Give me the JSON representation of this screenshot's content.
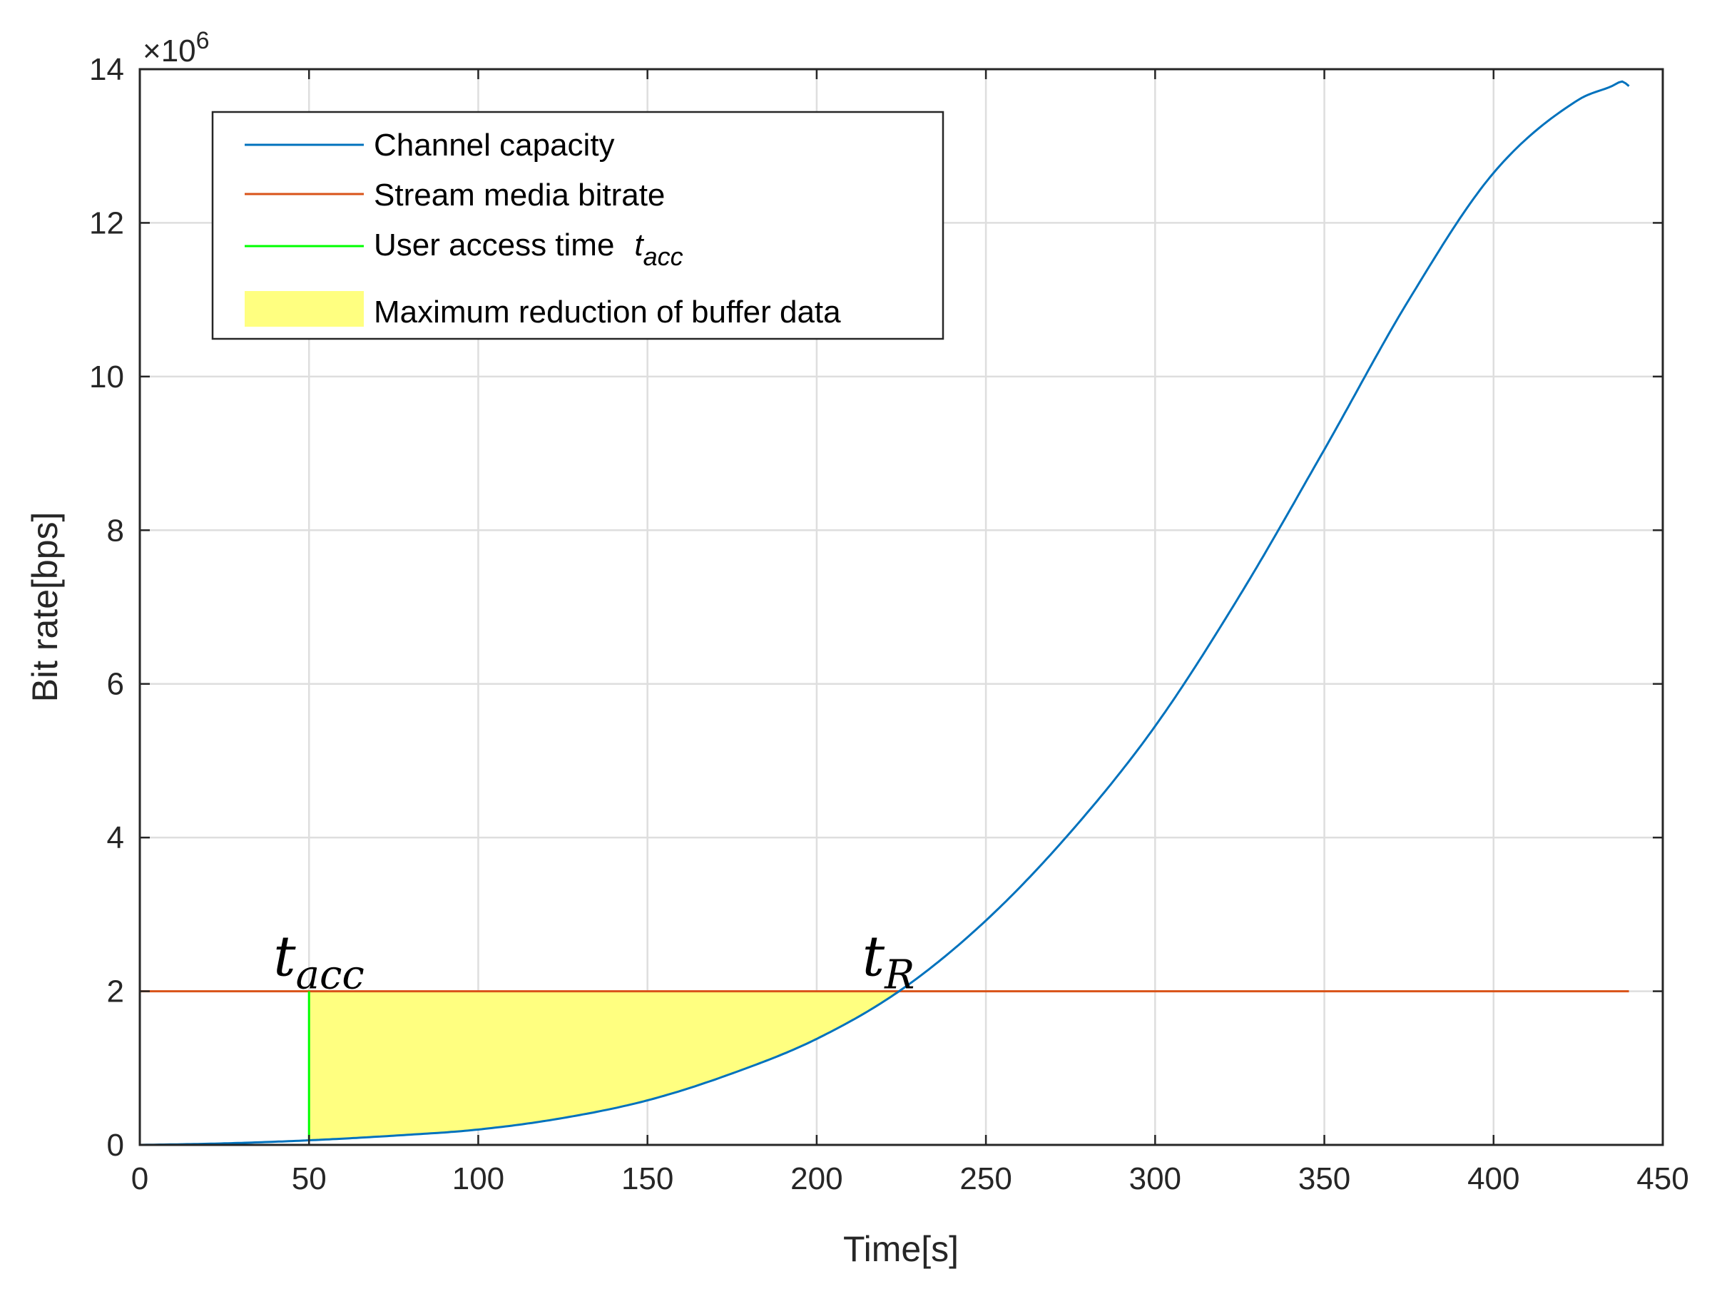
{
  "chart_data": {
    "type": "line",
    "xlabel": "Time[s]",
    "ylabel": "Bit rate[bps]",
    "y_exponent_base": "×10",
    "y_exponent_power": "6",
    "xlim": [
      0,
      450
    ],
    "ylim": [
      0,
      14
    ],
    "xticks": [
      "0",
      "50",
      "100",
      "150",
      "200",
      "250",
      "300",
      "350",
      "400",
      "450"
    ],
    "yticks": [
      "0",
      "2",
      "4",
      "6",
      "8",
      "10",
      "12",
      "14"
    ],
    "grid": true,
    "legend_position": "top-left",
    "series": [
      {
        "name": "Channel capacity",
        "color": "#0072BD",
        "x": [
          0,
          25,
          50,
          75,
          100,
          125,
          150,
          175,
          200,
          225,
          250,
          275,
          300,
          325,
          350,
          375,
          400,
          425,
          435,
          438,
          440
        ],
        "y": [
          0.0,
          0.02,
          0.06,
          0.12,
          0.2,
          0.35,
          0.58,
          0.93,
          1.38,
          2.02,
          2.92,
          4.07,
          5.45,
          7.15,
          9.05,
          11.0,
          12.65,
          13.6,
          13.78,
          13.84,
          13.78
        ]
      },
      {
        "name": "Stream media bitrate",
        "color": "#D95319",
        "x": [
          0,
          440
        ],
        "y": [
          2,
          2
        ]
      },
      {
        "name": "User access time",
        "name_symbol": "t",
        "name_subscript": "acc",
        "color": "#00FF00",
        "x": [
          50,
          50
        ],
        "y": [
          0.06,
          2
        ]
      }
    ],
    "fill_region": {
      "name": "Maximum reduction of buffer data",
      "color": "#FFFF80",
      "x_start": 50,
      "x_end": 224,
      "upper_y": 2
    },
    "annotations": [
      {
        "symbol": "t",
        "subscript": "acc",
        "x": 50,
        "y": 2.3
      },
      {
        "symbol": "t",
        "subscript": "R",
        "x": 224,
        "y": 2.3
      }
    ]
  }
}
